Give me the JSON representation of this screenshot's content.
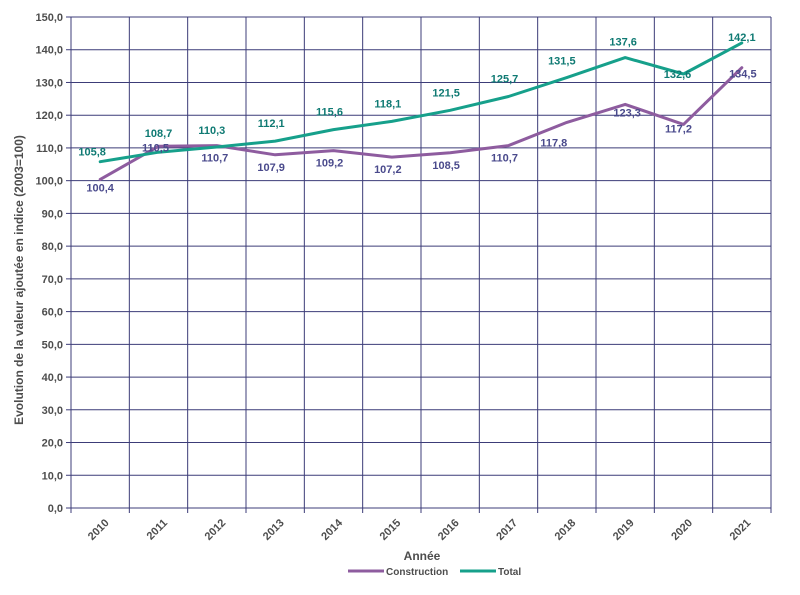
{
  "chart_data": {
    "type": "line",
    "title": "",
    "xlabel": "Année",
    "ylabel": "Evolution de la valeur ajoutée en indice (2003=100)",
    "categories": [
      "2010",
      "2011",
      "2012",
      "2013",
      "2014",
      "2015",
      "2016",
      "2017",
      "2018",
      "2019",
      "2020",
      "2021"
    ],
    "ylim": [
      0,
      150
    ],
    "yticks": [
      "0,0",
      "10,0",
      "20,0",
      "30,0",
      "40,0",
      "50,0",
      "60,0",
      "70,0",
      "80,0",
      "90,0",
      "100,0",
      "110,0",
      "120,0",
      "130,0",
      "140,0",
      "150,0"
    ],
    "grid": true,
    "legend_position": "bottom",
    "series": [
      {
        "name": "Construction",
        "color": "#8e5c9f",
        "label_color": "#4a4a8c",
        "values": [
          100.4,
          110.5,
          110.7,
          107.9,
          109.2,
          107.2,
          108.5,
          110.7,
          117.8,
          123.3,
          117.2,
          134.5
        ],
        "labels": [
          "100,4",
          "110,5",
          "110,7",
          "107,9",
          "109,2",
          "107,2",
          "108,5",
          "110,7",
          "117,8",
          "123,3",
          "117,2",
          "134,5"
        ]
      },
      {
        "name": "Total",
        "color": "#16a08b",
        "label_color": "#0f7a73",
        "values": [
          105.8,
          108.7,
          110.3,
          112.1,
          115.6,
          118.1,
          121.5,
          125.7,
          131.5,
          137.6,
          132.6,
          142.1
        ],
        "labels": [
          "105,8",
          "108,7",
          "110,3",
          "112,1",
          "115,6",
          "118,1",
          "121,5",
          "125,7",
          "131,5",
          "137,6",
          "132,6",
          "142,1"
        ]
      }
    ],
    "grid_color": "#3c3c78"
  }
}
